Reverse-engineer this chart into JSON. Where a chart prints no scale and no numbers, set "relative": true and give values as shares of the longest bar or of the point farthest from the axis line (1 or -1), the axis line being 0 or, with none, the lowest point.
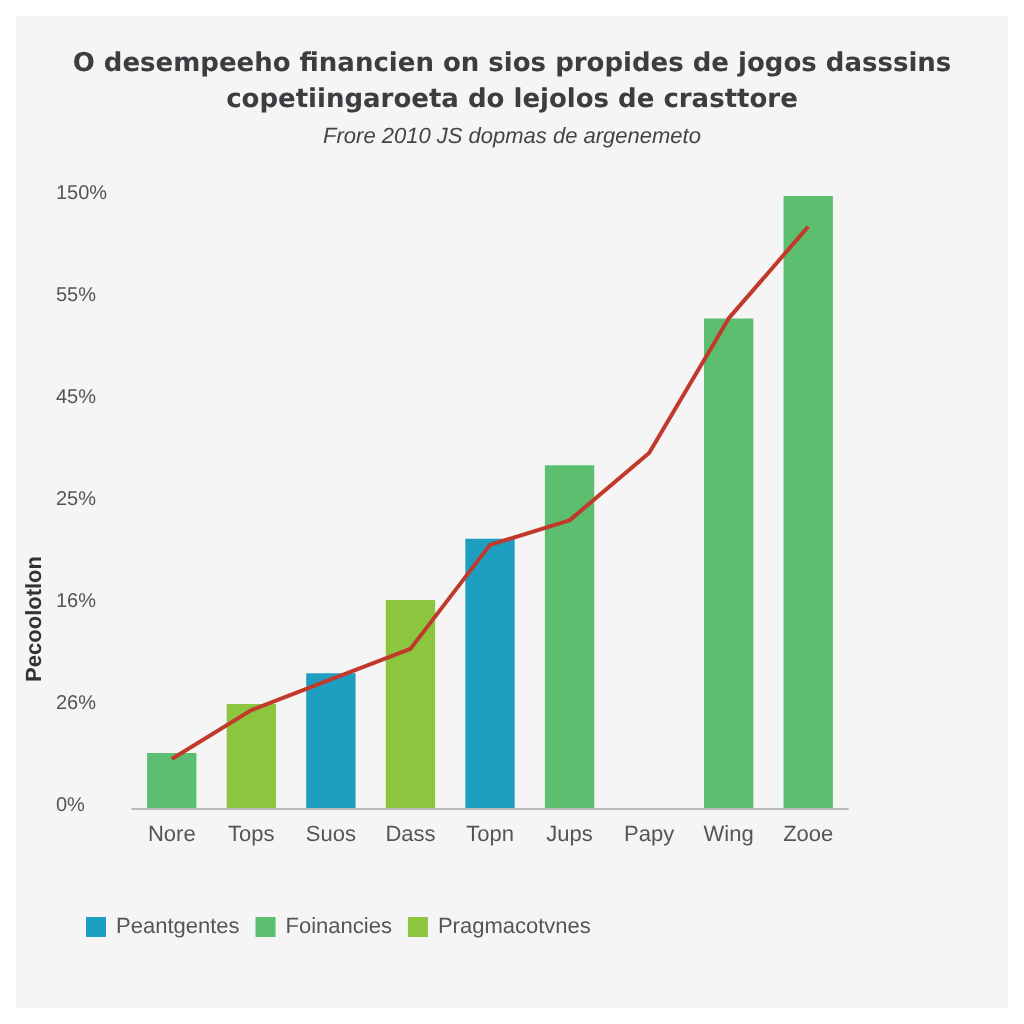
{
  "chart_data": {
    "type": "bar",
    "title": "O desempeeho financien on sios propides de jogos dasssins\ncopetiingaroeta do lejolos de crasttore",
    "subtitle": "Frore 2010 JS dopmas de argenemeto",
    "ylabel": "Pecoolotlon",
    "categories": [
      "Nore",
      "Tops",
      "Suos",
      "Dass",
      "Topn",
      "Jups",
      "Papy",
      "Wing",
      "Zooe"
    ],
    "relative": true,
    "series": [
      {
        "name": "Peantgentes",
        "color": "#1f9fc0",
        "values": [
          null,
          null,
          0.22,
          null,
          0.44,
          null,
          null,
          null,
          null
        ]
      },
      {
        "name": "Foinancies",
        "color": "#5cbf70",
        "values": [
          0.09,
          null,
          null,
          null,
          null,
          0.56,
          null,
          0.8,
          1
        ]
      },
      {
        "name": "Pragmacotvnes",
        "color": "#8cc63f",
        "values": [
          null,
          0.17,
          null,
          0.34,
          null,
          null,
          null,
          null,
          null
        ]
      },
      {
        "type": "line",
        "color": "#c0392b",
        "values": [
          0.08,
          0.16,
          0.21,
          0.26,
          0.43,
          0.47,
          0.58,
          0.8,
          0.95
        ]
      }
    ],
    "annotations": [
      "150%",
      "55%",
      "45%",
      "25%",
      "16%",
      "26%",
      "0%"
    ],
    "legend": "bottom",
    "marker": "none"
  }
}
